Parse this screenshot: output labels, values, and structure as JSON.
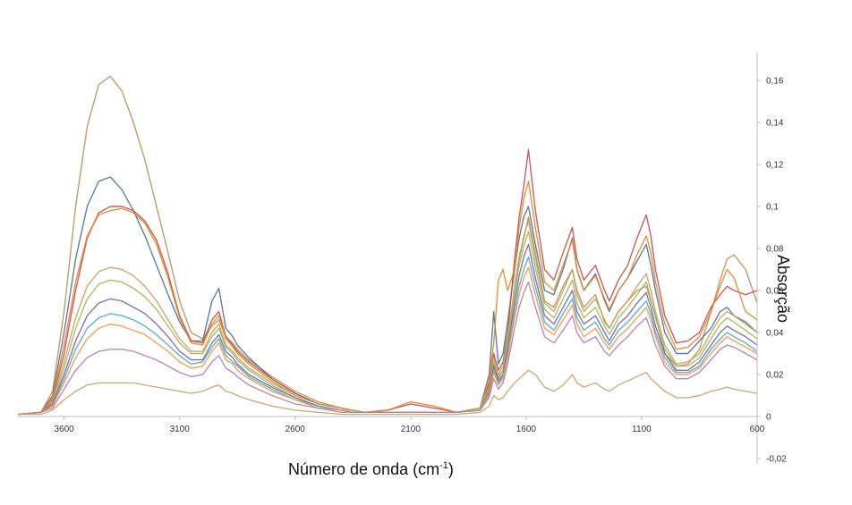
{
  "chart_data": {
    "type": "line",
    "title": "",
    "xlabel_main": "Número de onda (cm",
    "xlabel_sup": "-1",
    "xlabel_tail": ")",
    "ylabel": "Absorção",
    "xlim": [
      3800,
      600
    ],
    "ylim": [
      -0.02,
      0.17
    ],
    "x_ticks": [
      3600,
      3100,
      2600,
      2100,
      1600,
      1100,
      600
    ],
    "x_tick_labels": [
      "3600",
      "3100",
      "2600",
      "2100",
      "1600",
      "1100",
      "600"
    ],
    "y_ticks": [
      -0.02,
      0,
      0.02,
      0.04,
      0.06,
      0.08,
      0.1,
      0.12,
      0.14,
      0.16
    ],
    "y_tick_labels": [
      "-0,02",
      "0",
      "0,02",
      "0,04",
      "0,06",
      "0,08",
      "0,1",
      "0,12",
      "0,14",
      "0,16"
    ],
    "grid": false,
    "legend": "none",
    "x": [
      3800,
      3700,
      3650,
      3600,
      3550,
      3500,
      3450,
      3400,
      3350,
      3300,
      3250,
      3200,
      3150,
      3100,
      3050,
      3000,
      2960,
      2930,
      2900,
      2870,
      2850,
      2800,
      2700,
      2600,
      2500,
      2400,
      2350,
      2300,
      2200,
      2100,
      2000,
      1900,
      1800,
      1760,
      1740,
      1720,
      1700,
      1680,
      1650,
      1630,
      1610,
      1590,
      1560,
      1520,
      1480,
      1440,
      1400,
      1380,
      1350,
      1300,
      1260,
      1240,
      1200,
      1160,
      1120,
      1080,
      1060,
      1040,
      1000,
      950,
      900,
      850,
      800,
      760,
      730,
      700,
      650,
      600
    ],
    "series": [
      {
        "color": "#b9915a",
        "values": [
          0.001,
          0.002,
          0.012,
          0.05,
          0.1,
          0.138,
          0.158,
          0.162,
          0.155,
          0.14,
          0.122,
          0.1,
          0.078,
          0.055,
          0.04,
          0.037,
          0.043,
          0.046,
          0.038,
          0.035,
          0.032,
          0.027,
          0.019,
          0.012,
          0.007,
          0.004,
          0.003,
          0.002,
          0.002,
          0.002,
          0.002,
          0.002,
          0.004,
          0.015,
          0.025,
          0.018,
          0.022,
          0.035,
          0.06,
          0.075,
          0.085,
          0.095,
          0.078,
          0.055,
          0.052,
          0.062,
          0.07,
          0.06,
          0.052,
          0.058,
          0.045,
          0.042,
          0.05,
          0.055,
          0.06,
          0.062,
          0.055,
          0.048,
          0.03,
          0.024,
          0.025,
          0.032,
          0.05,
          0.065,
          0.075,
          0.077,
          0.07,
          0.054
        ]
      },
      {
        "color": "#4e7395",
        "values": [
          0.001,
          0.002,
          0.01,
          0.04,
          0.075,
          0.1,
          0.112,
          0.114,
          0.108,
          0.098,
          0.086,
          0.072,
          0.058,
          0.045,
          0.036,
          0.036,
          0.055,
          0.061,
          0.042,
          0.038,
          0.034,
          0.028,
          0.018,
          0.011,
          0.006,
          0.004,
          0.003,
          0.002,
          0.002,
          0.002,
          0.002,
          0.002,
          0.004,
          0.02,
          0.05,
          0.025,
          0.03,
          0.045,
          0.07,
          0.085,
          0.095,
          0.1,
          0.082,
          0.06,
          0.058,
          0.07,
          0.085,
          0.07,
          0.06,
          0.068,
          0.055,
          0.05,
          0.06,
          0.066,
          0.074,
          0.082,
          0.072,
          0.06,
          0.04,
          0.03,
          0.03,
          0.036,
          0.042,
          0.05,
          0.052,
          0.048,
          0.045,
          0.04
        ]
      },
      {
        "color": "#c0504d",
        "values": [
          0.001,
          0.002,
          0.008,
          0.03,
          0.06,
          0.085,
          0.097,
          0.1,
          0.1,
          0.098,
          0.093,
          0.084,
          0.068,
          0.048,
          0.036,
          0.035,
          0.046,
          0.05,
          0.038,
          0.034,
          0.031,
          0.026,
          0.018,
          0.011,
          0.006,
          0.004,
          0.003,
          0.002,
          0.003,
          0.006,
          0.004,
          0.002,
          0.004,
          0.016,
          0.03,
          0.022,
          0.026,
          0.04,
          0.075,
          0.095,
          0.11,
          0.127,
          0.098,
          0.07,
          0.065,
          0.078,
          0.09,
          0.075,
          0.065,
          0.072,
          0.06,
          0.055,
          0.065,
          0.072,
          0.085,
          0.096,
          0.086,
          0.07,
          0.048,
          0.035,
          0.036,
          0.04,
          0.052,
          0.058,
          0.062,
          0.06,
          0.058,
          0.06
        ]
      },
      {
        "color": "#e6852c",
        "values": [
          0.001,
          0.002,
          0.009,
          0.034,
          0.064,
          0.086,
          0.096,
          0.098,
          0.099,
          0.097,
          0.092,
          0.082,
          0.066,
          0.047,
          0.035,
          0.034,
          0.044,
          0.048,
          0.037,
          0.033,
          0.03,
          0.025,
          0.017,
          0.01,
          0.006,
          0.004,
          0.003,
          0.002,
          0.003,
          0.007,
          0.005,
          0.002,
          0.004,
          0.018,
          0.035,
          0.065,
          0.07,
          0.06,
          0.07,
          0.09,
          0.104,
          0.112,
          0.09,
          0.064,
          0.06,
          0.072,
          0.084,
          0.07,
          0.06,
          0.067,
          0.056,
          0.051,
          0.06,
          0.066,
          0.077,
          0.086,
          0.078,
          0.064,
          0.044,
          0.032,
          0.033,
          0.038,
          0.05,
          0.062,
          0.07,
          0.066,
          0.05,
          0.046
        ]
      },
      {
        "color": "#c6a060",
        "values": [
          0.001,
          0.002,
          0.007,
          0.026,
          0.047,
          0.062,
          0.069,
          0.071,
          0.07,
          0.067,
          0.062,
          0.055,
          0.046,
          0.037,
          0.031,
          0.031,
          0.04,
          0.044,
          0.034,
          0.031,
          0.028,
          0.023,
          0.016,
          0.01,
          0.006,
          0.004,
          0.003,
          0.002,
          0.002,
          0.002,
          0.002,
          0.002,
          0.004,
          0.014,
          0.028,
          0.02,
          0.024,
          0.038,
          0.062,
          0.076,
          0.086,
          0.093,
          0.075,
          0.054,
          0.05,
          0.06,
          0.07,
          0.058,
          0.05,
          0.056,
          0.046,
          0.042,
          0.05,
          0.055,
          0.062,
          0.068,
          0.06,
          0.05,
          0.034,
          0.025,
          0.026,
          0.03,
          0.04,
          0.047,
          0.05,
          0.048,
          0.044,
          0.04
        ]
      },
      {
        "color": "#9bbb59",
        "values": [
          0.001,
          0.002,
          0.006,
          0.023,
          0.042,
          0.056,
          0.063,
          0.065,
          0.064,
          0.061,
          0.057,
          0.051,
          0.043,
          0.035,
          0.03,
          0.03,
          0.038,
          0.042,
          0.033,
          0.03,
          0.027,
          0.022,
          0.015,
          0.009,
          0.005,
          0.003,
          0.003,
          0.002,
          0.002,
          0.002,
          0.002,
          0.002,
          0.004,
          0.013,
          0.026,
          0.019,
          0.022,
          0.035,
          0.058,
          0.072,
          0.081,
          0.088,
          0.071,
          0.051,
          0.047,
          0.056,
          0.065,
          0.054,
          0.047,
          0.052,
          0.043,
          0.039,
          0.047,
          0.052,
          0.058,
          0.064,
          0.056,
          0.047,
          0.032,
          0.024,
          0.024,
          0.028,
          0.037,
          0.044,
          0.047,
          0.045,
          0.041,
          0.037
        ]
      },
      {
        "color": "#8064a2",
        "values": [
          0.001,
          0.002,
          0.006,
          0.02,
          0.036,
          0.048,
          0.054,
          0.056,
          0.055,
          0.052,
          0.049,
          0.044,
          0.038,
          0.031,
          0.027,
          0.027,
          0.035,
          0.039,
          0.031,
          0.028,
          0.025,
          0.02,
          0.014,
          0.009,
          0.005,
          0.003,
          0.002,
          0.002,
          0.002,
          0.002,
          0.002,
          0.002,
          0.003,
          0.012,
          0.024,
          0.017,
          0.02,
          0.032,
          0.054,
          0.067,
          0.076,
          0.082,
          0.066,
          0.048,
          0.044,
          0.052,
          0.06,
          0.05,
          0.044,
          0.048,
          0.04,
          0.036,
          0.044,
          0.048,
          0.054,
          0.059,
          0.052,
          0.043,
          0.03,
          0.022,
          0.022,
          0.026,
          0.034,
          0.04,
          0.043,
          0.041,
          0.038,
          0.034
        ]
      },
      {
        "color": "#4bacc6",
        "values": [
          0.001,
          0.002,
          0.005,
          0.018,
          0.032,
          0.042,
          0.047,
          0.049,
          0.048,
          0.046,
          0.043,
          0.039,
          0.034,
          0.029,
          0.025,
          0.026,
          0.033,
          0.037,
          0.029,
          0.026,
          0.024,
          0.019,
          0.013,
          0.008,
          0.005,
          0.003,
          0.002,
          0.002,
          0.002,
          0.002,
          0.002,
          0.002,
          0.003,
          0.011,
          0.022,
          0.016,
          0.019,
          0.03,
          0.05,
          0.062,
          0.07,
          0.076,
          0.062,
          0.045,
          0.041,
          0.049,
          0.056,
          0.047,
          0.041,
          0.045,
          0.037,
          0.034,
          0.041,
          0.045,
          0.05,
          0.055,
          0.049,
          0.04,
          0.028,
          0.021,
          0.021,
          0.024,
          0.032,
          0.037,
          0.04,
          0.038,
          0.035,
          0.031
        ]
      },
      {
        "color": "#f79646",
        "values": [
          0.001,
          0.002,
          0.005,
          0.016,
          0.028,
          0.037,
          0.042,
          0.044,
          0.043,
          0.041,
          0.039,
          0.035,
          0.031,
          0.026,
          0.023,
          0.024,
          0.031,
          0.035,
          0.027,
          0.025,
          0.022,
          0.018,
          0.012,
          0.008,
          0.004,
          0.003,
          0.002,
          0.002,
          0.002,
          0.002,
          0.002,
          0.002,
          0.003,
          0.01,
          0.021,
          0.015,
          0.018,
          0.028,
          0.047,
          0.058,
          0.066,
          0.071,
          0.058,
          0.042,
          0.039,
          0.046,
          0.053,
          0.044,
          0.038,
          0.042,
          0.035,
          0.032,
          0.038,
          0.042,
          0.047,
          0.052,
          0.046,
          0.038,
          0.026,
          0.02,
          0.02,
          0.023,
          0.03,
          0.035,
          0.038,
          0.036,
          0.033,
          0.03
        ]
      },
      {
        "color": "#b07fb0",
        "values": [
          0.001,
          0.002,
          0.004,
          0.013,
          0.022,
          0.028,
          0.031,
          0.032,
          0.032,
          0.031,
          0.029,
          0.027,
          0.024,
          0.021,
          0.019,
          0.02,
          0.026,
          0.029,
          0.023,
          0.021,
          0.019,
          0.015,
          0.01,
          0.006,
          0.004,
          0.002,
          0.002,
          0.002,
          0.002,
          0.002,
          0.002,
          0.002,
          0.003,
          0.009,
          0.018,
          0.013,
          0.016,
          0.025,
          0.042,
          0.052,
          0.059,
          0.064,
          0.052,
          0.038,
          0.035,
          0.041,
          0.048,
          0.04,
          0.035,
          0.038,
          0.031,
          0.029,
          0.034,
          0.038,
          0.043,
          0.047,
          0.041,
          0.034,
          0.024,
          0.018,
          0.018,
          0.021,
          0.027,
          0.032,
          0.034,
          0.033,
          0.03,
          0.027
        ]
      },
      {
        "color": "#c8a46a",
        "values": [
          0.001,
          0.001,
          0.003,
          0.008,
          0.012,
          0.015,
          0.016,
          0.016,
          0.016,
          0.016,
          0.015,
          0.014,
          0.013,
          0.012,
          0.011,
          0.012,
          0.014,
          0.015,
          0.012,
          0.011,
          0.01,
          0.008,
          0.005,
          0.003,
          0.002,
          0.001,
          0.001,
          0.001,
          0.001,
          0.001,
          0.001,
          0.001,
          0.002,
          0.005,
          0.01,
          0.008,
          0.009,
          0.012,
          0.016,
          0.018,
          0.02,
          0.022,
          0.02,
          0.014,
          0.012,
          0.015,
          0.02,
          0.016,
          0.014,
          0.016,
          0.013,
          0.012,
          0.015,
          0.017,
          0.019,
          0.021,
          0.018,
          0.016,
          0.012,
          0.009,
          0.009,
          0.01,
          0.012,
          0.013,
          0.014,
          0.013,
          0.012,
          0.011
        ]
      }
    ]
  }
}
